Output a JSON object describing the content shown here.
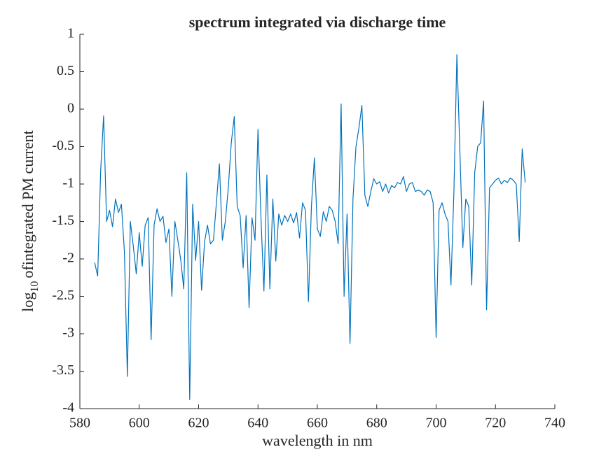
{
  "chart_data": {
    "type": "line",
    "title": "spectrum integrated via discharge time",
    "xlabel": "wavelength in nm",
    "ylabel": {
      "base": "log",
      "subscript": "10",
      "text": "ofintegrated PM current"
    },
    "xlim": [
      580,
      740
    ],
    "xticks": [
      580,
      600,
      620,
      640,
      660,
      680,
      700,
      720,
      740
    ],
    "ylim": [
      -4,
      1
    ],
    "yticks": [
      -4,
      -3.5,
      -3,
      -2.5,
      -2,
      -1.5,
      -1,
      -0.5,
      0,
      0.5,
      1
    ],
    "grid": false,
    "x": [
      585,
      586,
      587,
      588,
      589,
      590,
      591,
      592,
      593,
      594,
      595,
      596,
      597,
      598,
      599,
      600,
      601,
      602,
      603,
      604,
      605,
      606,
      607,
      608,
      609,
      610,
      611,
      612,
      613,
      614,
      615,
      616,
      617,
      618,
      619,
      620,
      621,
      622,
      623,
      624,
      625,
      626,
      627,
      628,
      629,
      630,
      631,
      632,
      633,
      634,
      635,
      636,
      637,
      638,
      639,
      640,
      641,
      642,
      643,
      644,
      645,
      646,
      647,
      648,
      649,
      650,
      651,
      652,
      653,
      654,
      655,
      656,
      657,
      658,
      659,
      660,
      661,
      662,
      663,
      664,
      665,
      666,
      667,
      668,
      669,
      670,
      671,
      672,
      673,
      674,
      675,
      676,
      677,
      678,
      679,
      680,
      681,
      682,
      683,
      684,
      685,
      686,
      687,
      688,
      689,
      690,
      691,
      692,
      693,
      694,
      695,
      696,
      697,
      698,
      699,
      700,
      701,
      702,
      703,
      704,
      705,
      706,
      707,
      708,
      709,
      710,
      711,
      712,
      713,
      714,
      715,
      716,
      717,
      718,
      719,
      720,
      721,
      722,
      723,
      724,
      725,
      726,
      727,
      728,
      729,
      730
    ],
    "series": [
      {
        "color": "#0072bd",
        "values": [
          -2.05,
          -2.23,
          -0.83,
          -0.09,
          -1.5,
          -1.35,
          -1.57,
          -1.2,
          -1.38,
          -1.27,
          -1.9,
          -3.57,
          -1.5,
          -1.83,
          -2.2,
          -1.65,
          -2.1,
          -1.55,
          -1.45,
          -3.08,
          -1.55,
          -1.33,
          -1.5,
          -1.43,
          -1.78,
          -1.6,
          -2.5,
          -1.5,
          -1.75,
          -2.02,
          -2.4,
          -0.85,
          -3.88,
          -1.27,
          -2.02,
          -1.5,
          -2.42,
          -1.77,
          -1.55,
          -1.8,
          -1.75,
          -1.25,
          -0.73,
          -1.75,
          -1.5,
          -1.05,
          -0.45,
          -0.1,
          -1.3,
          -1.42,
          -2.12,
          -1.42,
          -2.65,
          -1.45,
          -1.75,
          -0.27,
          -1.45,
          -2.43,
          -0.88,
          -2.4,
          -1.2,
          -2.03,
          -1.4,
          -1.55,
          -1.42,
          -1.5,
          -1.4,
          -1.52,
          -1.38,
          -1.72,
          -1.25,
          -1.35,
          -2.57,
          -1.3,
          -0.65,
          -1.6,
          -1.7,
          -1.37,
          -1.5,
          -1.3,
          -1.35,
          -1.5,
          -1.8,
          0.07,
          -2.5,
          -1.4,
          -3.13,
          -1.2,
          -0.5,
          -0.25,
          0.05,
          -1.15,
          -1.3,
          -1.1,
          -0.93,
          -1.0,
          -0.97,
          -1.1,
          -1.0,
          -1.12,
          -1.02,
          -1.05,
          -0.98,
          -1.0,
          -0.9,
          -1.1,
          -1.0,
          -0.98,
          -1.1,
          -1.08,
          -1.1,
          -1.15,
          -1.08,
          -1.1,
          -1.25,
          -3.05,
          -1.35,
          -1.25,
          -1.4,
          -1.5,
          -2.35,
          -1.1,
          0.73,
          -0.55,
          -1.85,
          -1.2,
          -1.3,
          -2.35,
          -0.85,
          -0.5,
          -0.45,
          0.11,
          -2.68,
          -1.05,
          -1.0,
          -0.95,
          -0.92,
          -1.0,
          -0.95,
          -0.98,
          -0.92,
          -0.95,
          -1.0,
          -1.77,
          -0.53,
          -0.98
        ]
      }
    ]
  }
}
